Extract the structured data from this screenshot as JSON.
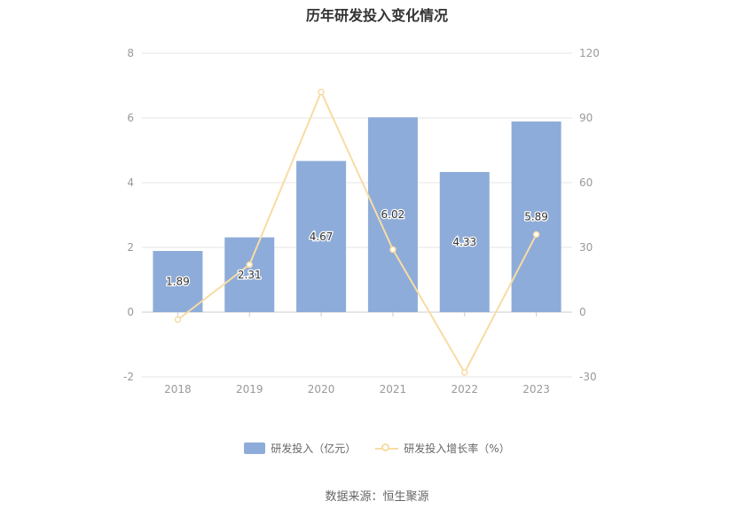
{
  "chart_data": {
    "type": "bar",
    "title": "历年研发投入变化情况",
    "categories": [
      "2018",
      "2019",
      "2020",
      "2021",
      "2022",
      "2023"
    ],
    "series": [
      {
        "name": "研发投入（亿元）",
        "type": "bar",
        "axis": "left",
        "color": "#8eacd9",
        "values": [
          1.89,
          2.31,
          4.67,
          6.02,
          4.33,
          5.89
        ],
        "labels": [
          "1.89",
          "2.31",
          "4.67",
          "6.02",
          "4.33",
          "5.89"
        ]
      },
      {
        "name": "研发投入增长率（%）",
        "type": "line",
        "axis": "right",
        "color": "#f7dca4",
        "values": [
          -3.5,
          22.0,
          102.0,
          29.0,
          -28.0,
          36.0
        ]
      }
    ],
    "y_left": {
      "min": -2,
      "max": 8,
      "ticks": [
        -2,
        0,
        2,
        4,
        6,
        8
      ]
    },
    "y_right": {
      "min": -30,
      "max": 120,
      "ticks": [
        -30,
        0,
        30,
        60,
        90,
        120
      ]
    },
    "grid": true,
    "legend_position": "bottom"
  },
  "footer": {
    "source": "数据来源：恒生聚源"
  }
}
